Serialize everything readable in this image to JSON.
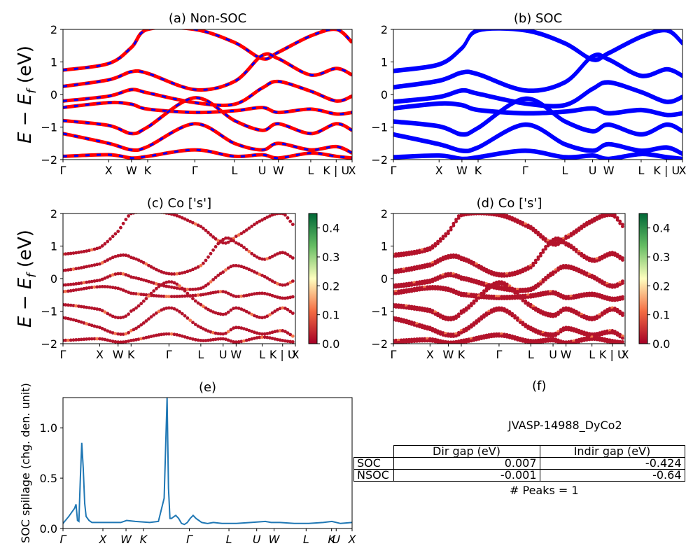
{
  "colors": {
    "non_soc_a": "#ff0000",
    "non_soc_b": "#0000ff",
    "soc": "#0000ff",
    "spillage": "#1f77b4",
    "proj_low": "#a50026",
    "proj_high": "#006837"
  },
  "kpath": {
    "labels": [
      "Γ",
      "X",
      "W",
      "K",
      "Γ",
      "L",
      "U",
      "W",
      "L",
      "K | U",
      "X"
    ],
    "positions": [
      0,
      0.158,
      0.237,
      0.293,
      0.456,
      0.593,
      0.689,
      0.745,
      0.857,
      0.945,
      1.0
    ]
  },
  "spill_kpath": {
    "labels": [
      "Γ",
      "X",
      "W",
      "K",
      "Γ",
      "L",
      "U",
      "W",
      "L",
      "K",
      "U",
      "X"
    ],
    "positions": [
      0,
      0.138,
      0.218,
      0.278,
      0.437,
      0.574,
      0.67,
      0.73,
      0.841,
      0.929,
      0.945,
      1.0
    ]
  },
  "chart_data": [
    {
      "panel": "a",
      "type": "line",
      "title": "(a) Non-SOC",
      "ylabel": "E − E_f (eV)",
      "ylim": [
        -2,
        2
      ],
      "yticks": [
        -2,
        -1,
        0,
        1,
        2
      ],
      "bands": [
        [
          0.75,
          0.95,
          1.45,
          2.0,
          2.0,
          1.6,
          1.1,
          1.3,
          1.8,
          2.0,
          1.6
        ],
        [
          0.25,
          0.45,
          0.7,
          0.65,
          0.15,
          0.4,
          1.2,
          1.1,
          0.6,
          0.8,
          0.6
        ],
        [
          -0.2,
          -0.05,
          0.15,
          0.05,
          -0.25,
          -0.3,
          0.2,
          0.4,
          0.1,
          -0.2,
          -0.05
        ],
        [
          -0.4,
          -0.25,
          -0.3,
          -0.45,
          -0.55,
          -0.5,
          -0.4,
          -0.55,
          -0.45,
          -0.6,
          -0.55
        ],
        [
          -0.8,
          -0.95,
          -1.2,
          -1.0,
          -0.1,
          -0.8,
          -1.1,
          -0.9,
          -1.2,
          -0.9,
          -1.1
        ],
        [
          -1.2,
          -1.5,
          -1.7,
          -1.6,
          -0.9,
          -1.5,
          -1.7,
          -1.5,
          -1.7,
          -1.6,
          -1.8
        ],
        [
          -1.9,
          -1.85,
          -1.95,
          -1.9,
          -1.7,
          -1.9,
          -1.85,
          -1.95,
          -1.8,
          -1.9,
          -1.95
        ]
      ]
    },
    {
      "panel": "b",
      "type": "line",
      "title": "(b) SOC",
      "ylim": [
        -2,
        2
      ],
      "yticks": [
        -2,
        -1,
        0,
        1,
        2
      ],
      "bands": [
        [
          0.75,
          0.95,
          1.45,
          2.0,
          2.0,
          1.6,
          1.1,
          1.3,
          1.8,
          2.0,
          1.6
        ],
        [
          0.25,
          0.45,
          0.7,
          0.65,
          0.15,
          0.4,
          1.2,
          1.1,
          0.6,
          0.8,
          0.6
        ],
        [
          -0.2,
          -0.05,
          0.15,
          0.05,
          -0.25,
          -0.3,
          0.2,
          0.4,
          0.1,
          -0.2,
          -0.05
        ],
        [
          -0.4,
          -0.25,
          -0.3,
          -0.45,
          -0.55,
          -0.5,
          -0.4,
          -0.55,
          -0.45,
          -0.6,
          -0.55
        ],
        [
          -0.8,
          -0.95,
          -1.2,
          -1.0,
          -0.1,
          -0.8,
          -1.1,
          -0.9,
          -1.2,
          -0.9,
          -1.1
        ],
        [
          -1.2,
          -1.5,
          -1.7,
          -1.6,
          -0.9,
          -1.5,
          -1.7,
          -1.5,
          -1.7,
          -1.6,
          -1.8
        ],
        [
          -1.9,
          -1.85,
          -1.95,
          -1.9,
          -1.7,
          -1.9,
          -1.85,
          -1.95,
          -1.8,
          -1.9,
          -1.95
        ]
      ]
    },
    {
      "panel": "c",
      "type": "scatter",
      "title": "(c)  Co ['s']",
      "ylabel": "E − E_f (eV)",
      "ylim": [
        -2,
        2
      ],
      "yticks": [
        -2,
        -1,
        0,
        1,
        2
      ],
      "colorbar": {
        "range": [
          0.0,
          0.45
        ],
        "ticks": [
          0.0,
          0.1,
          0.2,
          0.3,
          0.4
        ]
      }
    },
    {
      "panel": "d",
      "type": "scatter",
      "title": "(d) Co ['s']",
      "ylim": [
        -2,
        2
      ],
      "yticks": [
        -2,
        -1,
        0,
        1,
        2
      ],
      "colorbar": {
        "range": [
          0.0,
          0.45
        ],
        "ticks": [
          0.0,
          0.1,
          0.2,
          0.3,
          0.4
        ]
      }
    },
    {
      "panel": "e",
      "type": "line",
      "title": "(e)",
      "ylabel": "SOC spillage (chg. den. unit)",
      "ylim": [
        0,
        1.3
      ],
      "yticks": [
        0.0,
        0.5,
        1.0
      ],
      "x": [
        0,
        0.02,
        0.04,
        0.045,
        0.05,
        0.055,
        0.06,
        0.065,
        0.07,
        0.075,
        0.08,
        0.09,
        0.1,
        0.12,
        0.15,
        0.2,
        0.22,
        0.25,
        0.3,
        0.33,
        0.35,
        0.36,
        0.365,
        0.37,
        0.375,
        0.38,
        0.385,
        0.39,
        0.4,
        0.41,
        0.42,
        0.43,
        0.44,
        0.45,
        0.46,
        0.47,
        0.48,
        0.5,
        0.52,
        0.55,
        0.6,
        0.65,
        0.7,
        0.72,
        0.75,
        0.8,
        0.85,
        0.9,
        0.93,
        0.96,
        1.0
      ],
      "y": [
        0.05,
        0.12,
        0.2,
        0.24,
        0.08,
        0.07,
        0.5,
        0.85,
        0.6,
        0.25,
        0.12,
        0.08,
        0.06,
        0.06,
        0.06,
        0.06,
        0.08,
        0.07,
        0.06,
        0.07,
        0.3,
        1.3,
        0.4,
        0.1,
        0.1,
        0.11,
        0.12,
        0.13,
        0.1,
        0.05,
        0.04,
        0.06,
        0.1,
        0.13,
        0.1,
        0.08,
        0.06,
        0.05,
        0.06,
        0.05,
        0.05,
        0.06,
        0.07,
        0.06,
        0.06,
        0.05,
        0.05,
        0.06,
        0.07,
        0.05,
        0.06
      ]
    },
    {
      "panel": "f",
      "type": "table",
      "title": "(f)",
      "material": "JVASP-14988_DyCo2",
      "columns": [
        "",
        "Dir gap (eV)",
        "Indir gap (eV)"
      ],
      "rows": [
        [
          "SOC",
          "0.007",
          "-0.424"
        ],
        [
          "NSOC",
          "-0.001",
          "-0.64"
        ]
      ],
      "peaks": "# Peaks = 1"
    }
  ]
}
